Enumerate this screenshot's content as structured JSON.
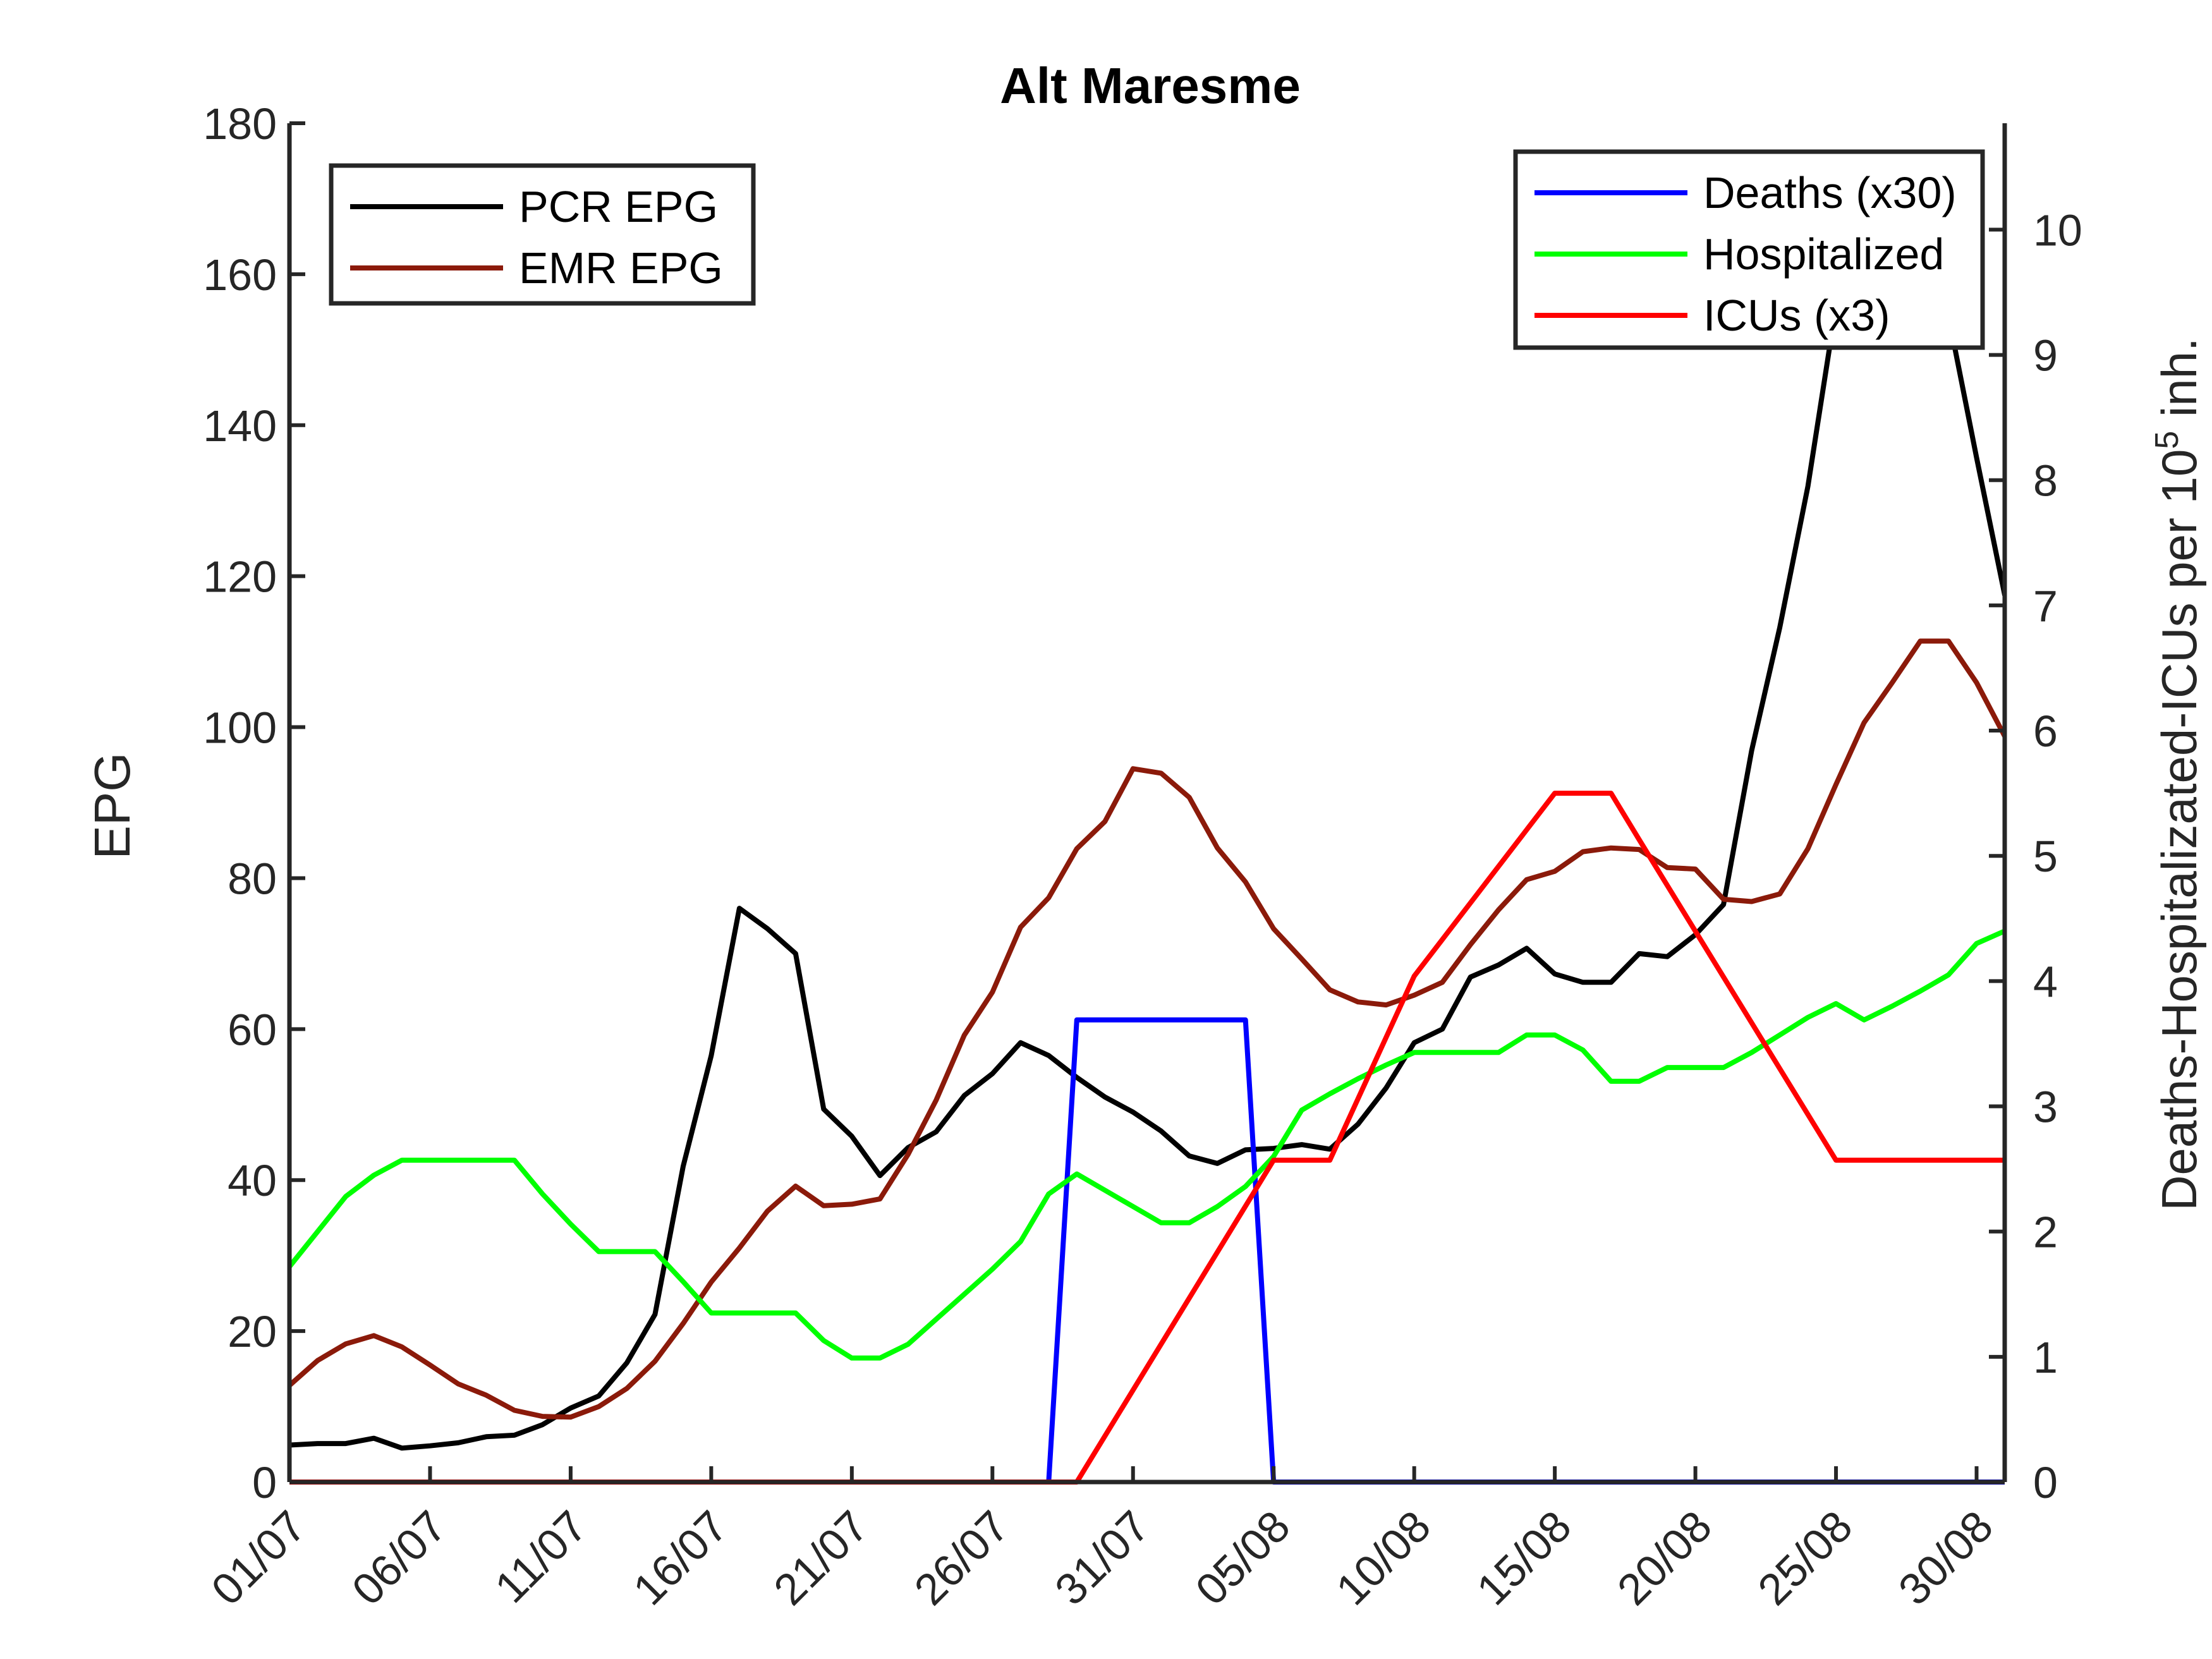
{
  "chart_data": {
    "type": "line",
    "title": "Alt Maresme",
    "ylabel_left": "EPG",
    "ylabel_right_prefix": "Deaths-Hospitalizated-ICUs per 10",
    "ylabel_right_exp": "5",
    "ylabel_right_suffix": " inh.",
    "x_start": "01/07",
    "x_end": "31/08",
    "xticks": [
      "01/07",
      "06/07",
      "11/07",
      "16/07",
      "21/07",
      "26/07",
      "31/07",
      "05/08",
      "10/08",
      "15/08",
      "20/08",
      "25/08",
      "30/08"
    ],
    "ylim_left": [
      0,
      180
    ],
    "yticks_left": [
      "0",
      "20",
      "40",
      "60",
      "80",
      "100",
      "120",
      "140",
      "160",
      "180"
    ],
    "ylim_right": [
      0,
      10.85
    ],
    "yticks_right": [
      "0",
      "1",
      "2",
      "3",
      "4",
      "5",
      "6",
      "7",
      "8",
      "9",
      "10"
    ],
    "legend_left": {
      "placement": "top-left",
      "entries": [
        {
          "label": "PCR EPG",
          "color": "#000000"
        },
        {
          "label": "EMR EPG",
          "color": "#8b1a0a"
        }
      ]
    },
    "legend_right": {
      "placement": "top-right",
      "entries": [
        {
          "label": "Deaths (x30)",
          "color": "#0000ff"
        },
        {
          "label": "Hospitalized",
          "color": "#00ff00"
        },
        {
          "label": "ICUs (x3)",
          "color": "#ff0000"
        }
      ]
    },
    "series": [
      {
        "name": "PCR EPG",
        "axis": "left",
        "color": "#000000",
        "x": [
          "01/07",
          "02/07",
          "03/07",
          "04/07",
          "05/07",
          "06/07",
          "07/07",
          "08/07",
          "09/07",
          "10/07",
          "11/07",
          "12/07",
          "13/07",
          "14/07",
          "15/07",
          "16/07",
          "17/07",
          "18/07",
          "19/07",
          "20/07",
          "21/07",
          "22/07",
          "23/07",
          "24/07",
          "25/07",
          "26/07",
          "27/07",
          "28/07",
          "29/07",
          "30/07",
          "31/07",
          "01/08",
          "02/08",
          "03/08",
          "04/08",
          "05/08",
          "06/08",
          "07/08",
          "08/08",
          "09/08",
          "10/08",
          "11/08",
          "12/08",
          "13/08",
          "14/08",
          "15/08",
          "16/08",
          "17/08",
          "18/08",
          "19/08",
          "20/08",
          "21/08",
          "22/08",
          "23/08",
          "24/08",
          "25/08",
          "26/08",
          "27/08",
          "28/08",
          "29/08",
          "30/08",
          "31/08"
        ],
        "y": [
          4.9,
          5.1,
          5.1,
          5.8,
          4.5,
          4.8,
          5.2,
          6,
          6.2,
          7.6,
          9.8,
          11.4,
          15.8,
          22.2,
          41.8,
          56.5,
          76,
          73.3,
          70,
          49.4,
          45.8,
          40.6,
          44.3,
          46.4,
          51.2,
          54.1,
          58.2,
          56.5,
          53.6,
          51,
          49,
          46.5,
          43.2,
          42.2,
          44,
          44.2,
          44.7,
          44.1,
          47.4,
          52.2,
          58.2,
          60,
          66.9,
          68.5,
          70.7,
          67.3,
          66.2,
          66.2,
          70,
          69.6,
          72.5,
          76.5,
          96.9,
          113.2,
          131.9,
          155.7,
          165,
          166,
          162.6,
          154.5,
          135.7,
          117.5
        ]
      },
      {
        "name": "EMR EPG",
        "axis": "left",
        "color": "#8b1a0a",
        "x": [
          "01/07",
          "02/07",
          "03/07",
          "04/07",
          "05/07",
          "06/07",
          "07/07",
          "08/07",
          "09/07",
          "10/07",
          "11/07",
          "12/07",
          "13/07",
          "14/07",
          "15/07",
          "16/07",
          "17/07",
          "18/07",
          "19/07",
          "20/07",
          "21/07",
          "22/07",
          "23/07",
          "24/07",
          "25/07",
          "26/07",
          "27/07",
          "28/07",
          "29/07",
          "30/07",
          "31/07",
          "01/08",
          "02/08",
          "03/08",
          "04/08",
          "05/08",
          "06/08",
          "07/08",
          "08/08",
          "09/08",
          "10/08",
          "11/08",
          "12/08",
          "13/08",
          "14/08",
          "15/08",
          "16/08",
          "17/08",
          "18/08",
          "19/08",
          "20/08",
          "21/08",
          "22/08",
          "23/08",
          "24/08",
          "25/08",
          "26/08",
          "27/08",
          "28/08",
          "29/08",
          "30/08",
          "31/08"
        ],
        "y": [
          12.8,
          16.1,
          18.3,
          19.4,
          17.9,
          15.5,
          13,
          11.5,
          9.5,
          8.7,
          8.6,
          10,
          12.4,
          16,
          21,
          26.5,
          31,
          35.9,
          39.2,
          36.6,
          36.8,
          37.5,
          43.4,
          50.6,
          59.2,
          64.9,
          73.5,
          77.4,
          83.9,
          87.5,
          94.5,
          93.9,
          90.7,
          84,
          79.5,
          73.3,
          69.3,
          65.2,
          63.6,
          63.2,
          64.5,
          66.2,
          71.2,
          75.8,
          79.8,
          80.9,
          83.5,
          84,
          83.8,
          81.4,
          81.2,
          77.2,
          76.9,
          77.9,
          83.9,
          92.4,
          100.6,
          105.9,
          111.4,
          111.4,
          105.9,
          98.8
        ]
      },
      {
        "name": "Deaths (x30)",
        "axis": "right",
        "color": "#0000ff",
        "x": [
          "01/07",
          "28/07",
          "29/07",
          "04/08",
          "05/08",
          "31/08"
        ],
        "y": [
          0,
          0,
          3.69,
          3.69,
          0,
          0
        ]
      },
      {
        "name": "Hospitalized",
        "axis": "right",
        "color": "#00ff00",
        "x": [
          "01/07",
          "02/07",
          "03/07",
          "04/07",
          "05/07",
          "06/07",
          "07/07",
          "08/07",
          "09/07",
          "10/07",
          "11/07",
          "12/07",
          "13/07",
          "14/07",
          "15/07",
          "16/07",
          "17/07",
          "18/07",
          "19/07",
          "20/07",
          "21/07",
          "22/07",
          "23/07",
          "24/07",
          "25/07",
          "26/07",
          "27/07",
          "28/07",
          "29/07",
          "30/07",
          "31/07",
          "01/08",
          "02/08",
          "03/08",
          "04/08",
          "05/08",
          "06/08",
          "07/08",
          "08/08",
          "09/08",
          "10/08",
          "11/08",
          "12/08",
          "13/08",
          "14/08",
          "15/08",
          "16/08",
          "17/08",
          "18/08",
          "19/08",
          "20/08",
          "21/08",
          "22/08",
          "23/08",
          "24/08",
          "25/08",
          "26/08",
          "27/08",
          "28/08",
          "29/08",
          "30/08",
          "31/08"
        ],
        "y": [
          1.72,
          2.0,
          2.28,
          2.45,
          2.57,
          2.57,
          2.57,
          2.57,
          2.57,
          2.3,
          2.06,
          1.84,
          1.84,
          1.84,
          1.6,
          1.35,
          1.35,
          1.35,
          1.35,
          1.13,
          0.99,
          0.99,
          1.1,
          1.3,
          1.5,
          1.7,
          1.92,
          2.3,
          2.46,
          2.33,
          2.2,
          2.07,
          2.07,
          2.2,
          2.36,
          2.6,
          2.97,
          3.1,
          3.22,
          3.33,
          3.43,
          3.43,
          3.43,
          3.43,
          3.57,
          3.57,
          3.45,
          3.2,
          3.2,
          3.31,
          3.31,
          3.31,
          3.43,
          3.57,
          3.71,
          3.82,
          3.69,
          3.8,
          3.92,
          4.05,
          4.3,
          4.4
        ]
      },
      {
        "name": "ICUs (x3)",
        "axis": "right",
        "color": "#ff0000",
        "x": [
          "01/07",
          "29/07",
          "05/08",
          "07/08",
          "10/08",
          "15/08",
          "17/08",
          "18/08",
          "25/08",
          "31/08"
        ],
        "y": [
          0,
          0,
          2.57,
          2.57,
          4.04,
          5.5,
          5.5,
          5.13,
          2.57,
          2.57
        ]
      }
    ]
  }
}
